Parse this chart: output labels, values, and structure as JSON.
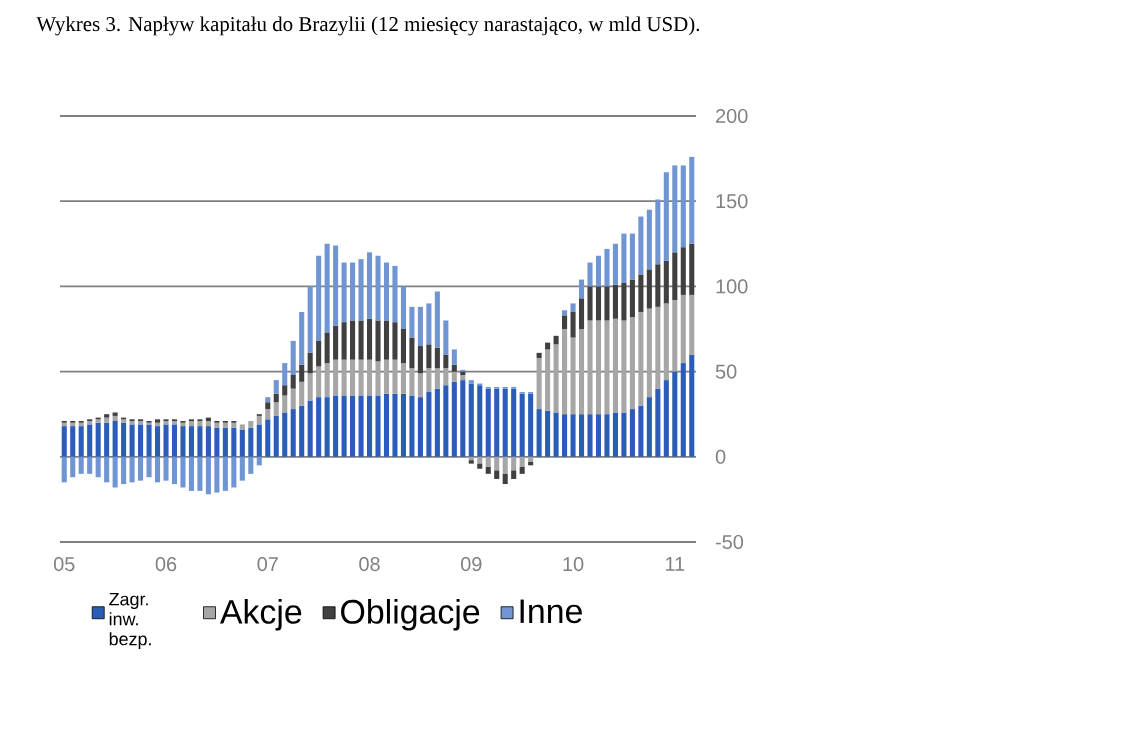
{
  "chart_data": {
    "type": "bar",
    "stacked": true,
    "title": "Wykres 3. Napływ kapitału do Brazylii (12 miesięcy narastająco, w mld USD).",
    "categories": [
      "05",
      null,
      null,
      null,
      null,
      null,
      null,
      null,
      null,
      null,
      null,
      null,
      "06",
      null,
      null,
      null,
      null,
      null,
      null,
      null,
      null,
      null,
      null,
      null,
      "07",
      null,
      null,
      null,
      null,
      null,
      null,
      null,
      null,
      null,
      null,
      null,
      "08",
      null,
      null,
      null,
      null,
      null,
      null,
      null,
      null,
      null,
      null,
      null,
      "09",
      null,
      null,
      null,
      null,
      null,
      null,
      null,
      null,
      null,
      null,
      null,
      "10",
      null,
      null,
      null,
      null,
      null,
      null,
      null,
      null,
      null,
      null,
      null,
      "11",
      null,
      null
    ],
    "series": [
      {
        "name": "Zagr. inw. bezp.",
        "color": "#2a5cb8",
        "values": [
          18,
          18,
          18,
          19,
          20,
          20,
          21,
          20,
          19,
          19,
          19,
          18,
          19,
          19,
          18,
          18,
          18,
          18,
          17,
          17,
          17,
          16,
          17,
          19,
          22,
          24,
          26,
          28,
          30,
          33,
          35,
          35,
          36,
          36,
          36,
          36,
          36,
          36,
          37,
          37,
          37,
          36,
          35,
          38,
          40,
          42,
          44,
          45,
          43,
          42,
          40,
          40,
          40,
          40,
          37,
          37,
          28,
          27,
          26,
          25,
          25,
          25,
          25,
          25,
          25,
          26,
          26,
          28,
          30,
          35,
          40,
          45,
          50,
          55,
          60
        ]
      },
      {
        "name": "Akcje",
        "color": "#a6a6a6",
        "values": [
          2,
          2,
          2,
          2,
          2,
          3,
          3,
          2,
          2,
          2,
          1,
          2,
          2,
          2,
          2,
          3,
          3,
          3,
          3,
          3,
          3,
          3,
          4,
          5,
          6,
          8,
          10,
          12,
          14,
          16,
          18,
          20,
          21,
          21,
          21,
          21,
          21,
          20,
          20,
          20,
          18,
          16,
          14,
          14,
          12,
          10,
          6,
          3,
          -2,
          -4,
          -6,
          -8,
          -10,
          -8,
          -6,
          -3,
          30,
          36,
          40,
          50,
          45,
          50,
          55,
          55,
          55,
          55,
          54,
          54,
          55,
          52,
          48,
          45,
          42,
          40,
          35
        ]
      },
      {
        "name": "Obligacje",
        "color": "#404040",
        "values": [
          1,
          1,
          1,
          1,
          1,
          2,
          2,
          1,
          1,
          1,
          1,
          2,
          1,
          1,
          1,
          1,
          1,
          2,
          1,
          1,
          1,
          0,
          0,
          1,
          4,
          5,
          6,
          8,
          10,
          12,
          15,
          18,
          20,
          22,
          23,
          23,
          24,
          24,
          23,
          22,
          20,
          18,
          16,
          14,
          12,
          8,
          4,
          2,
          -2,
          -3,
          -4,
          -5,
          -6,
          -5,
          -4,
          -2,
          3,
          4,
          5,
          8,
          15,
          18,
          20,
          20,
          20,
          20,
          22,
          22,
          22,
          23,
          25,
          25,
          28,
          28,
          30
        ]
      },
      {
        "name": "Inne",
        "color": "#6f95d3",
        "values": [
          -15,
          -12,
          -10,
          -10,
          -12,
          -15,
          -18,
          -16,
          -15,
          -14,
          -12,
          -15,
          -14,
          -16,
          -18,
          -20,
          -20,
          -22,
          -21,
          -20,
          -18,
          -14,
          -10,
          -5,
          3,
          8,
          13,
          20,
          31,
          39,
          50,
          52,
          47,
          35,
          34,
          36,
          39,
          38,
          34,
          33,
          25,
          18,
          23,
          24,
          33,
          20,
          9,
          1,
          2,
          1,
          1,
          1,
          1,
          1,
          1,
          1,
          0,
          0,
          0,
          3,
          5,
          11,
          14,
          18,
          22,
          24,
          29,
          27,
          34,
          35,
          38,
          52,
          51,
          48,
          51
        ]
      }
    ],
    "ylim": [
      -50,
      200
    ],
    "yticks": [
      -50,
      0,
      50,
      100,
      150,
      200
    ],
    "grid": "y",
    "legend": "bottom"
  }
}
